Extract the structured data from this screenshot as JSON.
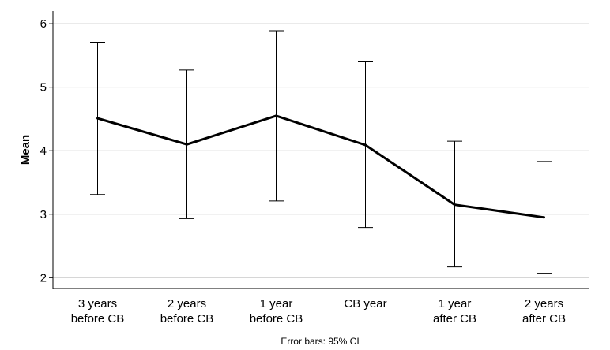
{
  "chart_data": {
    "type": "line",
    "categories": [
      [
        "3 years",
        "before CB"
      ],
      [
        "2 years",
        "before CB"
      ],
      [
        "1 year",
        "before CB"
      ],
      [
        "CB year"
      ],
      [
        "1 year",
        "after CB"
      ],
      [
        "2 years",
        "after CB"
      ]
    ],
    "values": [
      4.51,
      4.1,
      4.55,
      4.09,
      3.15,
      2.95
    ],
    "ci_upper": [
      5.71,
      5.27,
      5.89,
      5.4,
      4.15,
      3.83
    ],
    "ci_lower": [
      3.31,
      2.93,
      3.21,
      2.79,
      2.17,
      2.07
    ],
    "ylabel": "Mean",
    "xlabel": "",
    "ylim": [
      1.83,
      6.2
    ],
    "yticks": [
      2,
      3,
      4,
      5,
      6
    ],
    "grid": true,
    "footnote": "Error bars: 95% CI",
    "line_color": "#000000",
    "grid_color": "#c8c8c8"
  }
}
